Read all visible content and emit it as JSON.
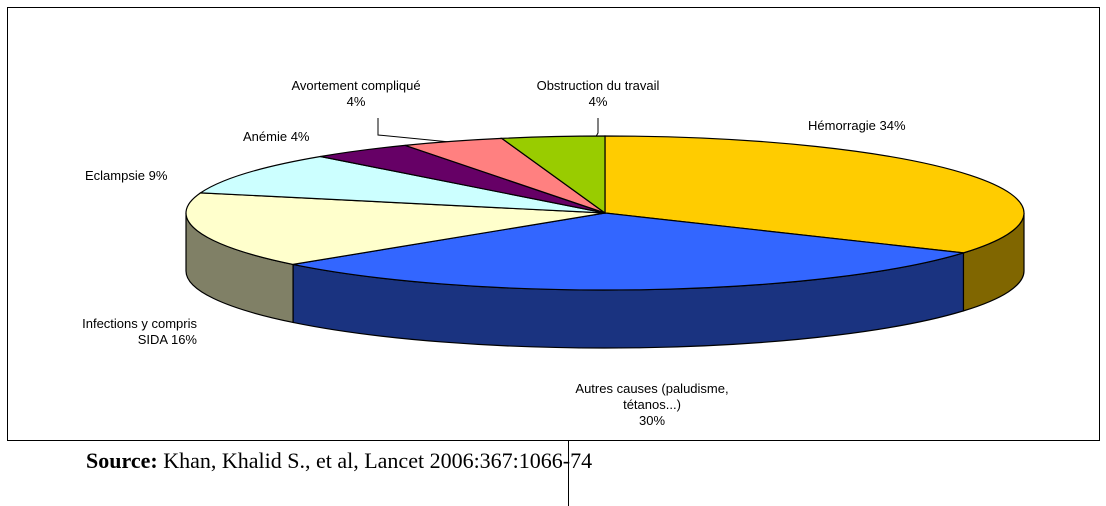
{
  "chart_data": {
    "type": "pie3d",
    "categories": [
      "Hémorragie",
      "Autres causes (paludisme, tétanos...)",
      "Infections y compris SIDA",
      "Eclampsie",
      "Anémie",
      "Avortement compliqué",
      "Obstruction du travail"
    ],
    "values": [
      34,
      30,
      16,
      9,
      4,
      4,
      4
    ],
    "value_labels": [
      "34%",
      "30%",
      "16%",
      "9%",
      "4%",
      "4%",
      "4%"
    ],
    "colors": [
      "#ffcc00",
      "#3366ff",
      "#ffffcc",
      "#ccffff",
      "#660066",
      "#ff8080",
      "#99cc00"
    ],
    "side_colors": [
      "#806600",
      "#1a3380",
      "#808066",
      "#668080",
      "#330033",
      "#804040",
      "#4d6600"
    ]
  },
  "source_label": "Source:",
  "source": "Khan, Khalid S., et al, Lancet 2006:367:1066-74"
}
